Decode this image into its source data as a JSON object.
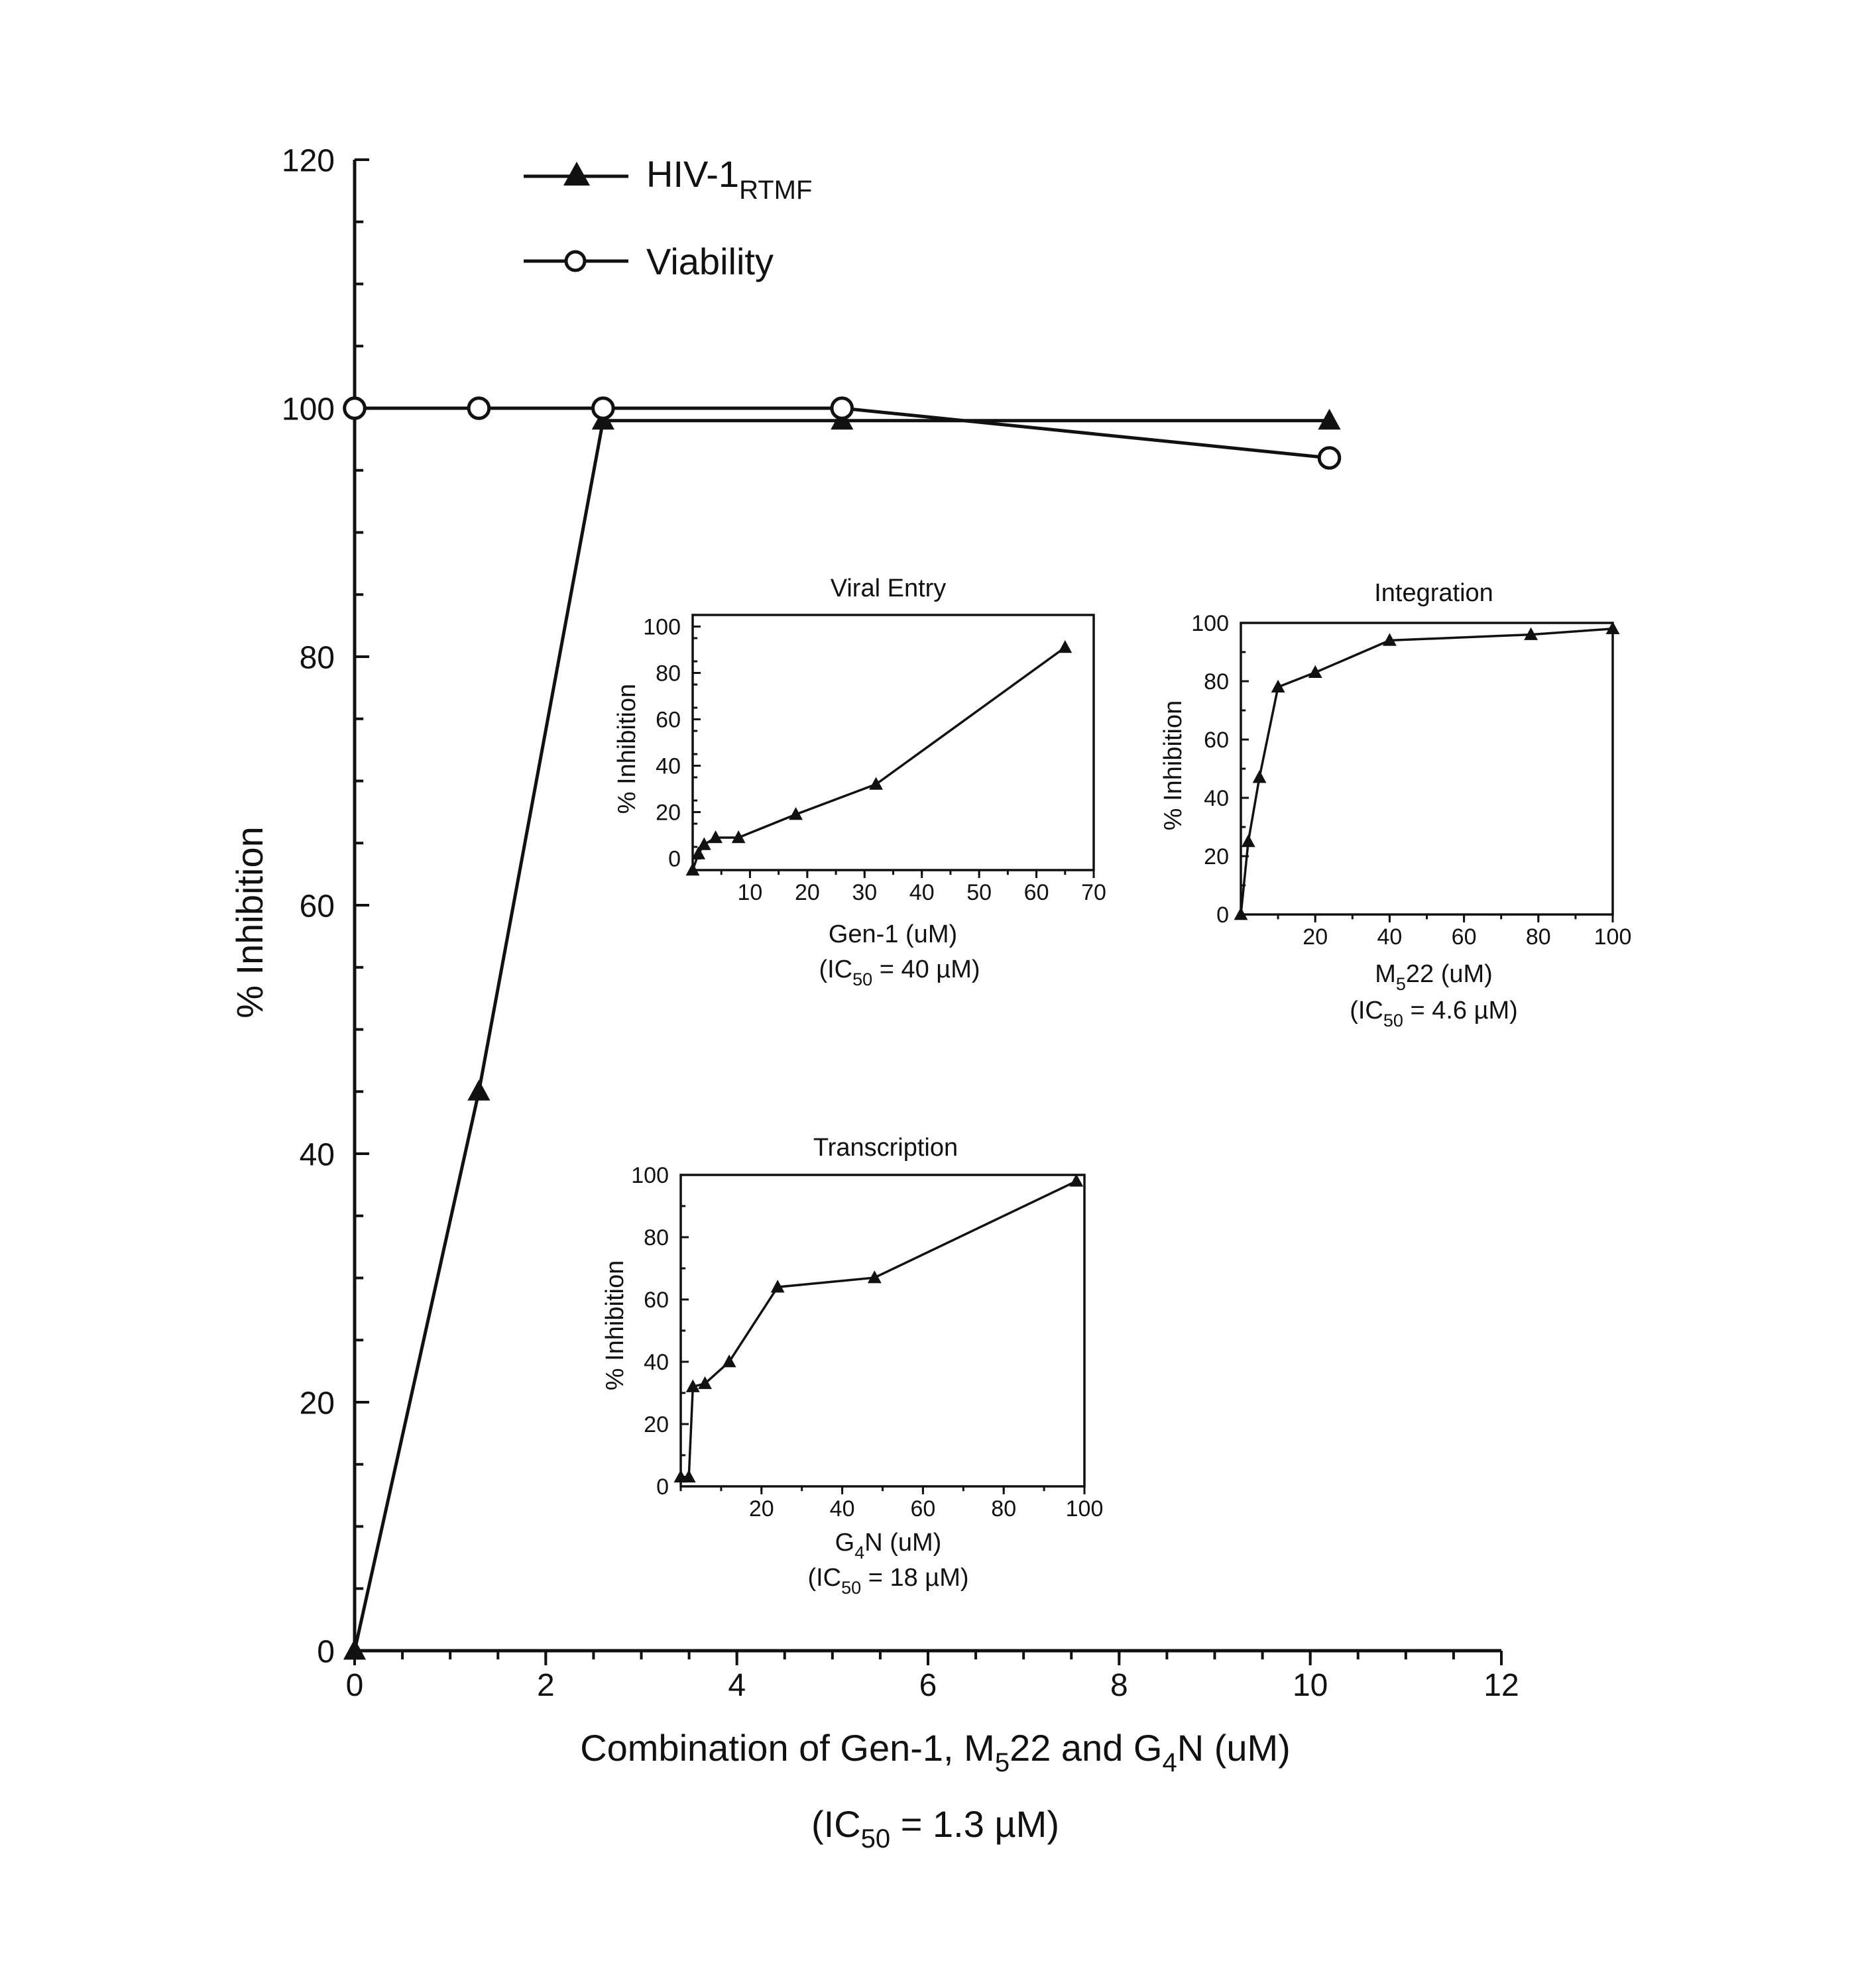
{
  "chart_data": [
    {
      "type": "line",
      "xlabel": "Combination of Gen-1, M",
      "xlabel_sub": "5",
      "xlabel_mid": "22 and G",
      "xlabel_sub2": "4",
      "xlabel_end": "N (uM)",
      "ic50_prefix": "(IC",
      "ic50_sub": "50",
      "ic50_value": " = 1.3 µM)",
      "ylabel": "% Inhibition",
      "xlim": [
        0,
        12
      ],
      "ylim": [
        0,
        120
      ],
      "x_ticks": [
        "0",
        "2",
        "4",
        "6",
        "8",
        "10",
        "12"
      ],
      "y_ticks": [
        "0",
        "20",
        "40",
        "60",
        "80",
        "100",
        "120"
      ],
      "legend_position": "top-left",
      "series": [
        {
          "name": "HIV-1",
          "name_sub": "RTMF",
          "marker": "filled-triangle",
          "x": [
            0,
            1.3,
            2.6,
            5.1,
            10.2
          ],
          "y": [
            0,
            45,
            99,
            99,
            99
          ]
        },
        {
          "name": "Viability",
          "marker": "open-circle",
          "x": [
            0,
            1.3,
            2.6,
            5.1,
            10.2
          ],
          "y": [
            100,
            100,
            100,
            100,
            96
          ]
        }
      ]
    },
    {
      "type": "line",
      "title": "Viral Entry",
      "xlabel": "Gen-1 (uM)",
      "ic50_prefix": "(IC",
      "ic50_sub": "50",
      "ic50_value": " = 40 µM)",
      "ylabel": "% Inhibition",
      "xlim": [
        0,
        70
      ],
      "ylim": [
        -5,
        105
      ],
      "x_ticks": [
        "10",
        "20",
        "30",
        "40",
        "50",
        "60",
        "70"
      ],
      "y_ticks": [
        "0",
        "20",
        "40",
        "60",
        "80",
        "100"
      ],
      "series": [
        {
          "marker": "filled-triangle",
          "x": [
            0,
            1,
            2,
            4,
            8,
            18,
            32,
            65
          ],
          "y": [
            -5,
            2,
            6,
            9,
            9,
            19,
            32,
            91
          ]
        }
      ]
    },
    {
      "type": "line",
      "title": "Integration",
      "xlabel_prefix": "M",
      "xlabel_sub": "5",
      "xlabel_value": "22 (uM)",
      "ic50_prefix": "(IC",
      "ic50_sub": "50",
      "ic50_value": " = 4.6 µM)",
      "ylabel": "% Inhibition",
      "xlim": [
        0,
        100
      ],
      "ylim": [
        0,
        100
      ],
      "x_ticks": [
        "20",
        "40",
        "60",
        "80",
        "100"
      ],
      "y_ticks": [
        "0",
        "20",
        "40",
        "60",
        "80",
        "100"
      ],
      "series": [
        {
          "marker": "filled-triangle",
          "x": [
            0,
            2,
            5,
            10,
            20,
            40,
            78,
            100
          ],
          "y": [
            0,
            25,
            47,
            78,
            83,
            94,
            96,
            98
          ]
        }
      ]
    },
    {
      "type": "line",
      "title": "Transcription",
      "xlabel_prefix": "G",
      "xlabel_sub": "4",
      "xlabel_value": "N (uM)",
      "ic50_prefix": "(IC",
      "ic50_sub": "50",
      "ic50_value": " = 18 µM)",
      "ylabel": "% Inhibition",
      "xlim": [
        0,
        100
      ],
      "ylim": [
        0,
        100
      ],
      "x_ticks": [
        "20",
        "40",
        "60",
        "80",
        "100"
      ],
      "y_ticks": [
        "0",
        "20",
        "40",
        "60",
        "80",
        "100"
      ],
      "series": [
        {
          "marker": "filled-triangle",
          "x": [
            0,
            2,
            3,
            6,
            12,
            24,
            48,
            98
          ],
          "y": [
            3,
            3,
            32,
            33,
            40,
            64,
            67,
            98
          ]
        }
      ]
    }
  ]
}
